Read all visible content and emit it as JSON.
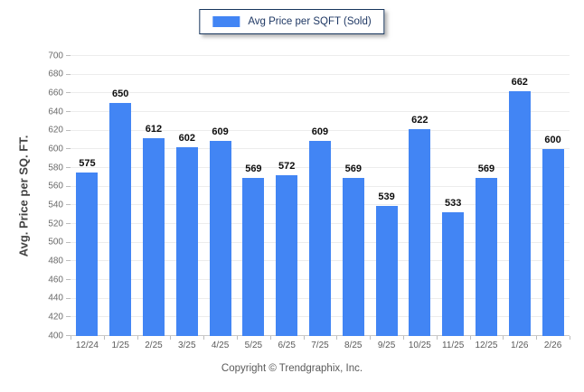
{
  "legend": {
    "label": "Avg Price per SQFT (Sold)",
    "swatch_color": "#4285F4"
  },
  "chart_data": {
    "type": "bar",
    "title": "",
    "legend": "Avg Price per SQFT (Sold)",
    "legend_position": "top-center",
    "categories": [
      "12/24",
      "1/25",
      "2/25",
      "3/25",
      "4/25",
      "5/25",
      "6/25",
      "7/25",
      "8/25",
      "9/25",
      "10/25",
      "11/25",
      "12/25",
      "1/26",
      "2/26"
    ],
    "values": [
      575,
      650,
      612,
      602,
      609,
      569,
      572,
      609,
      569,
      539,
      622,
      533,
      569,
      662,
      600
    ],
    "xlabel": "",
    "ylabel": "Avg. Price per SQ. FT.",
    "ylim": [
      400,
      700
    ],
    "ytick_step": 20,
    "grid": "horizontal",
    "bar_color": "#4285F4"
  },
  "footer": {
    "copyright": "Copyright © Trendgraphix, Inc."
  }
}
